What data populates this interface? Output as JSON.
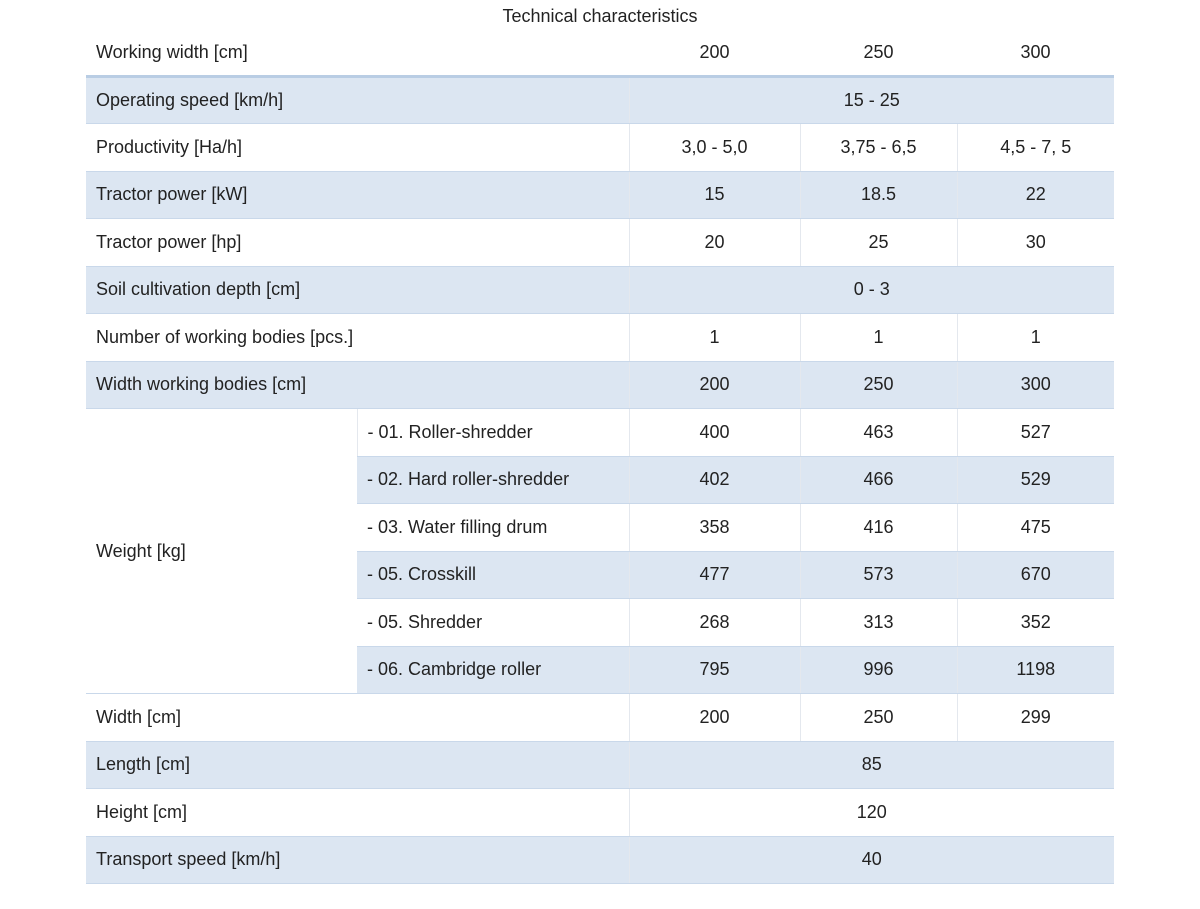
{
  "title": "Technical characteristics",
  "header": {
    "label": "Working width [cm]",
    "values": [
      200,
      250,
      300
    ]
  },
  "rows": [
    {
      "label": "Operating speed [km/h]",
      "value": "15 - 25"
    },
    {
      "label": "Productivity [Ha/h]",
      "values": [
        "3,0 - 5,0",
        "3,75 - 6,5",
        "4,5 - 7, 5"
      ]
    },
    {
      "label": "Tractor power [kW]",
      "values": [
        15,
        18.5,
        22
      ]
    },
    {
      "label": "Tractor power [hp]",
      "values": [
        20,
        25,
        30
      ]
    },
    {
      "label": "Soil cultivation depth [cm]",
      "value": "0 - 3"
    },
    {
      "label": "Number of working bodies [pcs.]",
      "values": [
        1,
        1,
        1
      ]
    },
    {
      "label": "Width working bodies [cm]",
      "values": [
        200,
        250,
        300
      ]
    },
    {
      "label": "Weight [kg]",
      "rows": [
        {
          "label": "- 01. Roller-shredder",
          "values": [
            400,
            463,
            527
          ]
        },
        {
          "label": "- 02. Hard roller-shredder",
          "values": [
            402,
            466,
            529
          ]
        },
        {
          "label": "- 03. Water filling drum",
          "values": [
            358,
            416,
            475
          ]
        },
        {
          "label": "- 05. Crosskill",
          "values": [
            477,
            573,
            670
          ]
        },
        {
          "label": "- 05. Shredder",
          "values": [
            268,
            313,
            352
          ]
        },
        {
          "label": "- 06. Cambridge roller",
          "values": [
            795,
            996,
            1198
          ]
        }
      ]
    },
    {
      "label": "Width [cm]",
      "values": [
        200,
        250,
        299
      ]
    },
    {
      "label": "Length [cm]",
      "value": 85
    },
    {
      "label": "Height [cm]",
      "value": 120
    },
    {
      "label": "Transport speed [km/h]",
      "value": 40
    }
  ]
}
